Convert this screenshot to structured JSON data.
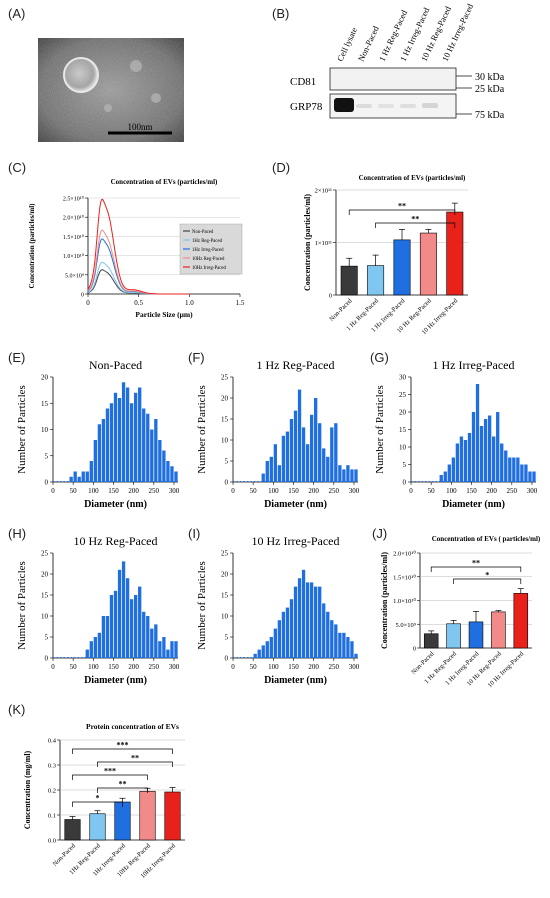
{
  "panels": {
    "A": "(A)",
    "B": "(B)",
    "C": "(C)",
    "D": "(D)",
    "E": "(E)",
    "F": "(F)",
    "G": "(G)",
    "H": "(H)",
    "I": "(I)",
    "J": "(J)",
    "K": "(K)"
  },
  "tem": {
    "scalebar_label": "100nm"
  },
  "western_blot": {
    "lanes": [
      "Cell lysate",
      "Non-Paced",
      "1 Hz Reg-Paced",
      "1 Hz Irreg-Paced",
      "10 Hz Reg-Paced",
      "10 Hz Irreg-Paced"
    ],
    "markers": [
      "CD81",
      "GRP78"
    ],
    "mw_labels": [
      "30 kDa",
      "25 kDa",
      "75 kDa"
    ]
  },
  "chart_data": [
    {
      "id": "C",
      "type": "line",
      "title": "Concentration of EVs (particles/ml)",
      "xlabel": "Particle Size (μm)",
      "ylabel": "Concentration (particles/ml)",
      "xlim": [
        0,
        1.5
      ],
      "ylim": [
        0,
        25000000000.0
      ],
      "xticks": [
        "0",
        "0.5",
        "1.0",
        "1.5"
      ],
      "yticks": [
        "0",
        "5.0×10⁹",
        "1.0×10¹⁰",
        "1.5×10¹⁰",
        "2.0×10¹⁰",
        "2.5×10¹⁰"
      ],
      "legend": "top-right",
      "series": [
        {
          "name": "Non-Paced",
          "color": "#444444",
          "peak": 5500000000.0
        },
        {
          "name": "1Hz Reg-Paced",
          "color": "#7fc6f0",
          "peak": 7200000000.0
        },
        {
          "name": "1Hz Irreg-Paced",
          "color": "#1f6fe0",
          "peak": 12500000000.0
        },
        {
          "name": "10Hz Reg-Paced",
          "color": "#f28a8a",
          "peak": 14500000000.0
        },
        {
          "name": "10Hz Irreg-Paced",
          "color": "#e8221b",
          "peak": 21500000000.0
        }
      ]
    },
    {
      "id": "D",
      "type": "bar",
      "title": "Concentration of EVs (particles/ml)",
      "ylabel": "Concentration (particles/ml)",
      "ylim": [
        0,
        200000000000.0
      ],
      "yticks": [
        "0",
        "1×10¹¹",
        "2×10¹¹"
      ],
      "categories": [
        "Non-Paced",
        "1 Hz Reg-Paced",
        "1 Hz Irreg-Paced",
        "10 Hz Reg-Paced",
        "10 Hz Irreg-Paced"
      ],
      "values": [
        55000000000.0,
        56000000000.0,
        105000000000.0,
        118000000000.0,
        158000000000.0
      ],
      "errors": [
        15000000000.0,
        20000000000.0,
        20000000000.0,
        7000000000.0,
        17000000000.0
      ],
      "colors": [
        "#3a3a3a",
        "#7fc6f0",
        "#1f6fe0",
        "#f28a8a",
        "#e8221b"
      ],
      "significance": [
        {
          "from": 0,
          "to": 4,
          "label": "**"
        },
        {
          "from": 1,
          "to": 4,
          "label": "**"
        }
      ]
    },
    {
      "id": "E",
      "type": "bar",
      "title": "Non-Paced",
      "xlabel": "Diameter (nm)",
      "ylabel": "Number of Particles",
      "xlim": [
        0,
        310
      ],
      "ylim": [
        0,
        20
      ],
      "xticks": [
        0,
        50,
        100,
        150,
        200,
        250,
        300
      ],
      "yticks": [
        0,
        5,
        10,
        15,
        20
      ],
      "x": [
        45,
        55,
        65,
        75,
        85,
        95,
        105,
        115,
        125,
        135,
        145,
        155,
        165,
        175,
        185,
        195,
        205,
        215,
        225,
        235,
        245,
        255,
        265,
        275,
        285,
        295,
        305
      ],
      "values": [
        1,
        2,
        1,
        2,
        2,
        4,
        8,
        11,
        12,
        14,
        15,
        17,
        16,
        19,
        18,
        15,
        17,
        18,
        14,
        13,
        10,
        12,
        8,
        6,
        4,
        3,
        2
      ]
    },
    {
      "id": "F",
      "type": "bar",
      "title": "1 Hz Reg-Paced",
      "xlabel": "Diameter (nm)",
      "ylabel": "Number of Particles",
      "xlim": [
        0,
        310
      ],
      "ylim": [
        0,
        25
      ],
      "xticks": [
        0,
        50,
        100,
        150,
        200,
        250,
        300
      ],
      "yticks": [
        0,
        5,
        10,
        15,
        20,
        25
      ],
      "x": [
        75,
        85,
        95,
        105,
        115,
        125,
        135,
        145,
        155,
        165,
        175,
        185,
        195,
        205,
        215,
        225,
        235,
        245,
        255,
        265,
        275,
        285,
        295,
        305
      ],
      "values": [
        2,
        5,
        6,
        9,
        4,
        11,
        12,
        15,
        17,
        22,
        13,
        9,
        16,
        20,
        14,
        8,
        6,
        13,
        14,
        4,
        3,
        4,
        3,
        3
      ]
    },
    {
      "id": "G",
      "type": "bar",
      "title": "1 Hz Irreg-Paced",
      "xlabel": "Diameter (nm)",
      "ylabel": "Number of Particles",
      "xlim": [
        0,
        310
      ],
      "ylim": [
        0,
        30
      ],
      "xticks": [
        0,
        50,
        100,
        150,
        200,
        250,
        300
      ],
      "yticks": [
        0,
        5,
        10,
        15,
        20,
        25,
        30
      ],
      "x": [
        75,
        85,
        95,
        105,
        115,
        125,
        135,
        145,
        155,
        165,
        175,
        185,
        195,
        205,
        215,
        225,
        235,
        245,
        255,
        265,
        275,
        285,
        295,
        305
      ],
      "values": [
        2,
        3,
        5,
        7,
        11,
        13,
        12,
        14,
        20,
        28,
        16,
        18,
        19,
        13,
        20,
        11,
        9,
        7,
        7,
        7,
        5,
        5,
        3,
        3
      ]
    },
    {
      "id": "H",
      "type": "bar",
      "title": "10 Hz Reg-Paced",
      "xlabel": "Diameter (nm)",
      "ylabel": "Number of Particles",
      "xlim": [
        0,
        310
      ],
      "ylim": [
        0,
        25
      ],
      "xticks": [
        0,
        50,
        100,
        150,
        200,
        250,
        300
      ],
      "yticks": [
        0,
        5,
        10,
        15,
        20,
        25
      ],
      "x": [
        85,
        95,
        105,
        115,
        125,
        135,
        145,
        155,
        165,
        175,
        185,
        195,
        205,
        215,
        225,
        235,
        245,
        255,
        265,
        275,
        285,
        295,
        305
      ],
      "values": [
        2,
        4,
        5,
        6,
        10,
        10,
        15,
        16,
        21,
        23,
        19,
        14,
        15,
        17,
        11,
        10,
        7,
        8,
        4,
        5,
        2,
        4,
        4
      ]
    },
    {
      "id": "I",
      "type": "bar",
      "title": "10 Hz Irreg-Paced",
      "xlabel": "Diameter (nm)",
      "ylabel": "Number of Particles",
      "xlim": [
        0,
        310
      ],
      "ylim": [
        0,
        25
      ],
      "xticks": [
        0,
        50,
        100,
        150,
        200,
        250,
        300
      ],
      "yticks": [
        0,
        5,
        10,
        15,
        20,
        25
      ],
      "x": [
        55,
        65,
        75,
        85,
        95,
        105,
        115,
        125,
        135,
        145,
        155,
        165,
        175,
        185,
        195,
        205,
        215,
        225,
        235,
        245,
        255,
        265,
        275,
        285,
        295,
        305
      ],
      "values": [
        1,
        2,
        3,
        4,
        5,
        7,
        9,
        11,
        12,
        14,
        17,
        19,
        21,
        18,
        18,
        17,
        17,
        13,
        11,
        9,
        8,
        6,
        6,
        5,
        4,
        1
      ]
    },
    {
      "id": "J",
      "type": "bar",
      "title": "Concentration of EVs ( particles/ml)",
      "ylabel": "Concentration (particles/ml)",
      "ylim": [
        0,
        20000000000.0
      ],
      "yticks": [
        "0",
        "5.0×10⁹",
        "1.0×10¹⁰",
        "1.5×10¹⁰",
        "2.0×10¹⁰"
      ],
      "categories": [
        "Non-Paced",
        "1 Hz Reg-Paced",
        "1 Hz Irreg-Paced",
        "10 Hz Reg-Paced",
        "10 Hz Irreg-Paced"
      ],
      "values": [
        3000000000.0,
        5100000000.0,
        5500000000.0,
        7600000000.0,
        11500000000.0
      ],
      "errors": [
        600000000.0,
        700000000.0,
        2200000000.0,
        300000000.0,
        1000000000.0
      ],
      "colors": [
        "#3a3a3a",
        "#7fc6f0",
        "#1f6fe0",
        "#f28a8a",
        "#e8221b"
      ],
      "significance": [
        {
          "from": 0,
          "to": 4,
          "label": "**"
        },
        {
          "from": 1,
          "to": 4,
          "label": "*"
        }
      ]
    },
    {
      "id": "K",
      "type": "bar",
      "title": "Protein concentration of EVs",
      "ylabel": "Concentration (mg/ml)",
      "ylim": [
        0,
        0.4
      ],
      "yticks": [
        "0.0",
        "0.1",
        "0.2",
        "0.3",
        "0.4"
      ],
      "categories": [
        "Non-Paced",
        "1Hz Reg-Paced",
        "1Hz Irreg-Paced",
        "10Hz Reg-Paced",
        "10Hz Irreg-Paced"
      ],
      "values": [
        0.082,
        0.105,
        0.152,
        0.195,
        0.192
      ],
      "errors": [
        0.012,
        0.012,
        0.015,
        0.012,
        0.018
      ],
      "colors": [
        "#3a3a3a",
        "#7fc6f0",
        "#1f6fe0",
        "#f28a8a",
        "#e8221b"
      ],
      "significance": [
        {
          "from": 0,
          "to": 4,
          "label": "***"
        },
        {
          "from": 1,
          "to": 4,
          "label": "**"
        },
        {
          "from": 0,
          "to": 3,
          "label": "***"
        },
        {
          "from": 1,
          "to": 3,
          "label": "**"
        },
        {
          "from": 0,
          "to": 2,
          "label": "*"
        }
      ]
    }
  ]
}
